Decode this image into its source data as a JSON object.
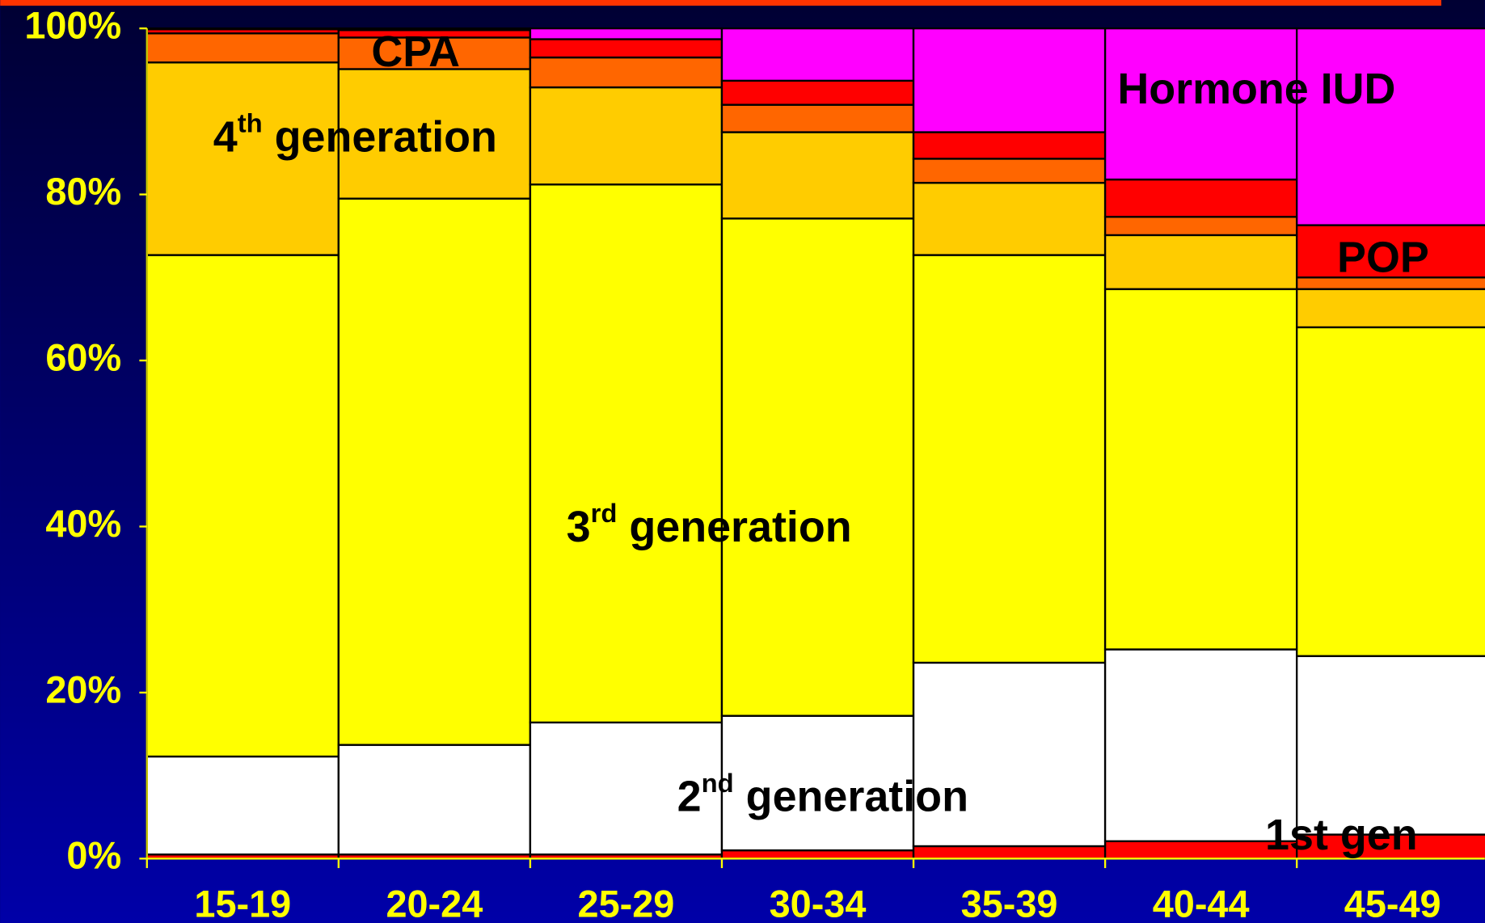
{
  "chart_data": {
    "type": "stacked_bar",
    "categories": [
      "15-19",
      "20-24",
      "25-29",
      "30-34",
      "35-39",
      "40-44",
      "45-49"
    ],
    "ylim": [
      0,
      100
    ],
    "yticks": [
      {
        "value": 0,
        "label": "0%"
      },
      {
        "value": 20,
        "label": "20%"
      },
      {
        "value": 40,
        "label": "40%"
      },
      {
        "value": 60,
        "label": "60%"
      },
      {
        "value": 80,
        "label": "80%"
      },
      {
        "value": 100,
        "label": "100%"
      }
    ],
    "series": [
      {
        "name": "1st gen",
        "color": "#ff0000",
        "values": [
          0.5,
          0.5,
          0.5,
          1.0,
          1.5,
          2.1,
          2.9
        ]
      },
      {
        "label": {
          "main": "2",
          "sup": "nd",
          "rest": " generation"
        },
        "color": "#ffffff",
        "values": [
          11.8,
          13.2,
          15.9,
          16.2,
          22.1,
          23.1,
          21.5
        ]
      },
      {
        "label": {
          "main": "3",
          "sup": "rd",
          "rest": " generation"
        },
        "color": "#ffff00",
        "values": [
          60.4,
          65.8,
          64.8,
          59.9,
          49.1,
          43.4,
          39.6
        ]
      },
      {
        "label": {
          "main": "4",
          "sup": "th",
          "rest": " generation"
        },
        "color": "#ffcc00",
        "values": [
          23.2,
          15.6,
          11.7,
          10.4,
          8.7,
          6.5,
          4.6
        ]
      },
      {
        "name": "CPA",
        "color": "#ff6600",
        "values": [
          3.5,
          3.8,
          3.6,
          3.3,
          2.9,
          2.2,
          1.4
        ]
      },
      {
        "name": "POP",
        "color": "#ff0000",
        "values": [
          0.5,
          0.9,
          2.2,
          2.9,
          3.2,
          4.5,
          6.3
        ]
      },
      {
        "name": "Hormone IUD",
        "color": "#ff00ff",
        "values": [
          0.1,
          0.2,
          1.3,
          6.3,
          12.5,
          18.2,
          23.7
        ]
      }
    ]
  }
}
